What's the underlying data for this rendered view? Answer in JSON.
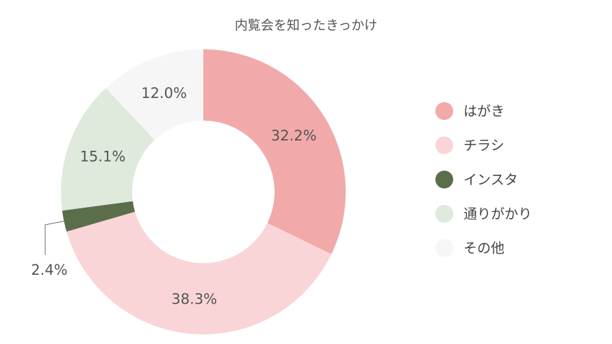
{
  "chart_data": {
    "type": "pie",
    "donut": true,
    "title": "内覧会を知ったきっかけ",
    "categories": [
      "はがき",
      "チラシ",
      "インスタ",
      "通りがかり",
      "その他"
    ],
    "values": [
      32.2,
      38.3,
      2.4,
      15.1,
      12.0
    ],
    "labels": [
      "32.2%",
      "38.3%",
      "2.4%",
      "15.1%",
      "12.0%"
    ],
    "colors": [
      "#f2a9a9",
      "#f9d5d8",
      "#5a6e4b",
      "#dfe9dc",
      "#f6f6f6"
    ],
    "legend": "right"
  }
}
